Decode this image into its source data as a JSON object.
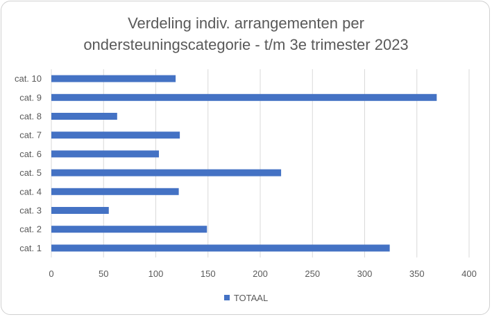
{
  "chart_data": {
    "type": "bar",
    "orientation": "horizontal",
    "title_lines": [
      "Verdeling indiv. arrangementen per",
      "ondersteuningscategorie - t/m 3e trimester 2023"
    ],
    "categories": [
      "cat. 1",
      "cat. 2",
      "cat. 3",
      "cat. 4",
      "cat. 5",
      "cat. 6",
      "cat. 7",
      "cat. 8",
      "cat. 9",
      "cat. 10"
    ],
    "series": [
      {
        "name": "TOTAAL",
        "values": [
          324,
          149,
          55,
          122,
          220,
          103,
          123,
          63,
          369,
          119
        ],
        "color": "#4472c4"
      }
    ],
    "xlim": [
      0,
      400
    ],
    "xticks": [
      0,
      50,
      100,
      150,
      200,
      250,
      300,
      350,
      400
    ],
    "grid": true,
    "legend_position": "bottom"
  }
}
